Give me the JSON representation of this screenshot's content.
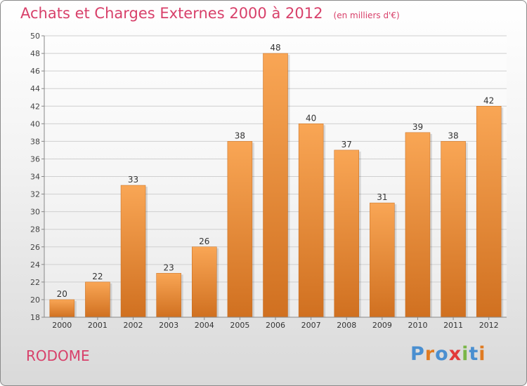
{
  "header": {
    "title": "Achats et Charges Externes 2000 à 2012",
    "unit": "(en milliers d'€)"
  },
  "commune": "RODOME",
  "logo": {
    "text": "Proxiti",
    "letters": [
      {
        "ch": "P",
        "color": "#4a8fd0"
      },
      {
        "ch": "r",
        "color": "#e07b22"
      },
      {
        "ch": "o",
        "color": "#4a8fd0"
      },
      {
        "ch": "x",
        "color": "#e23a3a"
      },
      {
        "ch": "i",
        "color": "#7ab648"
      },
      {
        "ch": "t",
        "color": "#4a8fd0"
      },
      {
        "ch": "i",
        "color": "#e07b22"
      }
    ]
  },
  "chart_data": {
    "type": "bar",
    "title": "Achats et Charges Externes 2000 à 2012",
    "subtitle": "(en milliers d'€)",
    "xlabel": "",
    "ylabel": "",
    "categories": [
      "2000",
      "2001",
      "2002",
      "2003",
      "2004",
      "2005",
      "2006",
      "2007",
      "2008",
      "2009",
      "2010",
      "2011",
      "2012"
    ],
    "values": [
      20,
      22,
      33,
      23,
      26,
      38,
      48,
      40,
      37,
      31,
      39,
      38,
      42
    ],
    "ylim": [
      18,
      50
    ],
    "yticks": [
      18,
      20,
      22,
      24,
      26,
      28,
      30,
      32,
      34,
      36,
      38,
      40,
      42,
      44,
      46,
      48,
      50
    ],
    "grid": true,
    "colors": {
      "bar_light": "#f9a655",
      "bar_dark": "#d07020",
      "text_accent": "#d8406a"
    }
  }
}
